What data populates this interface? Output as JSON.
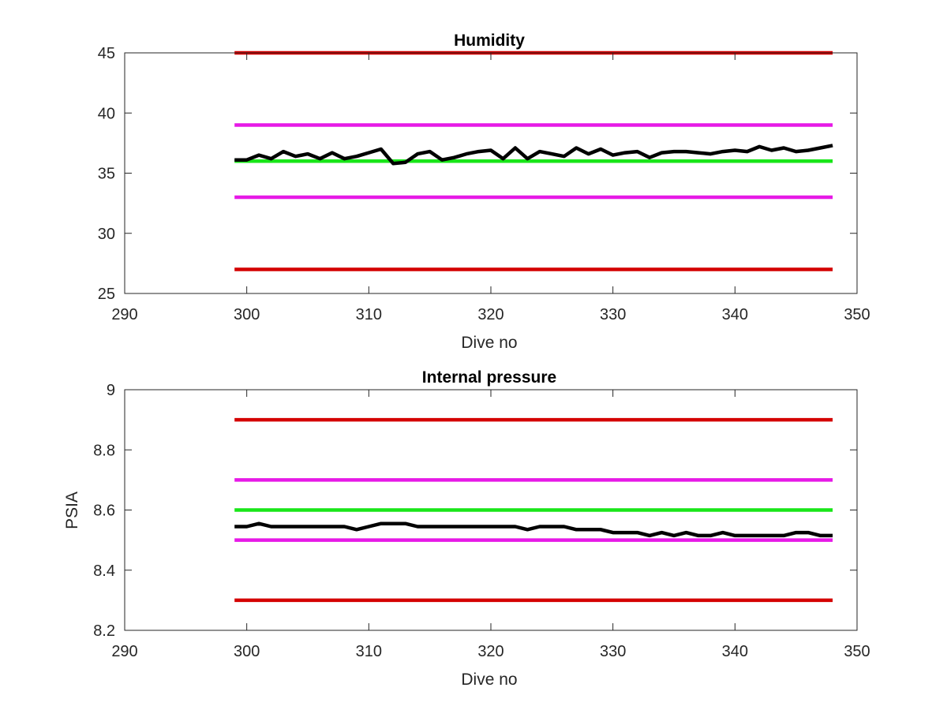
{
  "chart_data": [
    {
      "type": "line",
      "title": "Humidity",
      "xlabel": "Dive no",
      "ylabel": "",
      "xlim": [
        290,
        350
      ],
      "ylim": [
        25,
        45
      ],
      "xticks": [
        290,
        300,
        310,
        320,
        330,
        340,
        350
      ],
      "yticks": [
        25,
        30,
        35,
        40,
        45
      ],
      "grid": false,
      "series": [
        {
          "color": "#d40000",
          "x": [
            299,
            348
          ],
          "y": [
            45,
            45
          ]
        },
        {
          "color": "#e619e6",
          "x": [
            299,
            348
          ],
          "y": [
            39,
            39
          ]
        },
        {
          "color": "#19e619",
          "x": [
            299,
            348
          ],
          "y": [
            36,
            36
          ]
        },
        {
          "color": "#e619e6",
          "x": [
            299,
            348
          ],
          "y": [
            33,
            33
          ]
        },
        {
          "color": "#d40000",
          "x": [
            299,
            348
          ],
          "y": [
            27,
            27
          ]
        },
        {
          "color": "#000000",
          "x": [
            299,
            300,
            301,
            302,
            303,
            304,
            305,
            306,
            307,
            308,
            309,
            310,
            311,
            312,
            313,
            314,
            315,
            316,
            317,
            318,
            319,
            320,
            321,
            322,
            323,
            324,
            325,
            326,
            327,
            328,
            329,
            330,
            331,
            332,
            333,
            334,
            335,
            336,
            337,
            338,
            339,
            340,
            341,
            342,
            343,
            344,
            345,
            346,
            347,
            348
          ],
          "y": [
            36.1,
            36.1,
            36.5,
            36.2,
            36.8,
            36.4,
            36.6,
            36.2,
            36.7,
            36.2,
            36.4,
            36.7,
            37.0,
            35.8,
            35.9,
            36.6,
            36.8,
            36.1,
            36.3,
            36.6,
            36.8,
            36.9,
            36.2,
            37.1,
            36.2,
            36.8,
            36.6,
            36.4,
            37.1,
            36.6,
            37.0,
            36.5,
            36.7,
            36.8,
            36.3,
            36.7,
            36.8,
            36.8,
            36.7,
            36.6,
            36.8,
            36.9,
            36.8,
            37.2,
            36.9,
            37.1,
            36.8,
            36.9,
            37.1,
            37.3
          ]
        }
      ]
    },
    {
      "type": "line",
      "title": "Internal pressure",
      "xlabel": "Dive no",
      "ylabel": "PSIA",
      "xlim": [
        290,
        350
      ],
      "ylim": [
        8.2,
        9
      ],
      "xticks": [
        290,
        300,
        310,
        320,
        330,
        340,
        350
      ],
      "yticks": [
        8.2,
        8.4,
        8.6,
        8.8,
        9
      ],
      "grid": false,
      "series": [
        {
          "color": "#d40000",
          "x": [
            299,
            348
          ],
          "y": [
            8.9,
            8.9
          ]
        },
        {
          "color": "#e619e6",
          "x": [
            299,
            348
          ],
          "y": [
            8.7,
            8.7
          ]
        },
        {
          "color": "#19e619",
          "x": [
            299,
            348
          ],
          "y": [
            8.6,
            8.6
          ]
        },
        {
          "color": "#e619e6",
          "x": [
            299,
            348
          ],
          "y": [
            8.5,
            8.5
          ]
        },
        {
          "color": "#d40000",
          "x": [
            299,
            348
          ],
          "y": [
            8.3,
            8.3
          ]
        },
        {
          "color": "#000000",
          "x": [
            299,
            300,
            301,
            302,
            303,
            304,
            305,
            306,
            307,
            308,
            309,
            310,
            311,
            312,
            313,
            314,
            315,
            316,
            317,
            318,
            319,
            320,
            321,
            322,
            323,
            324,
            325,
            326,
            327,
            328,
            329,
            330,
            331,
            332,
            333,
            334,
            335,
            336,
            337,
            338,
            339,
            340,
            341,
            342,
            343,
            344,
            345,
            346,
            347,
            348
          ],
          "y": [
            8.545,
            8.545,
            8.555,
            8.545,
            8.545,
            8.545,
            8.545,
            8.545,
            8.545,
            8.545,
            8.535,
            8.545,
            8.555,
            8.555,
            8.555,
            8.545,
            8.545,
            8.545,
            8.545,
            8.545,
            8.545,
            8.545,
            8.545,
            8.545,
            8.535,
            8.545,
            8.545,
            8.545,
            8.535,
            8.535,
            8.535,
            8.525,
            8.525,
            8.525,
            8.515,
            8.525,
            8.515,
            8.525,
            8.515,
            8.515,
            8.525,
            8.515,
            8.515,
            8.515,
            8.515,
            8.515,
            8.525,
            8.525,
            8.515,
            8.515
          ]
        }
      ]
    }
  ]
}
